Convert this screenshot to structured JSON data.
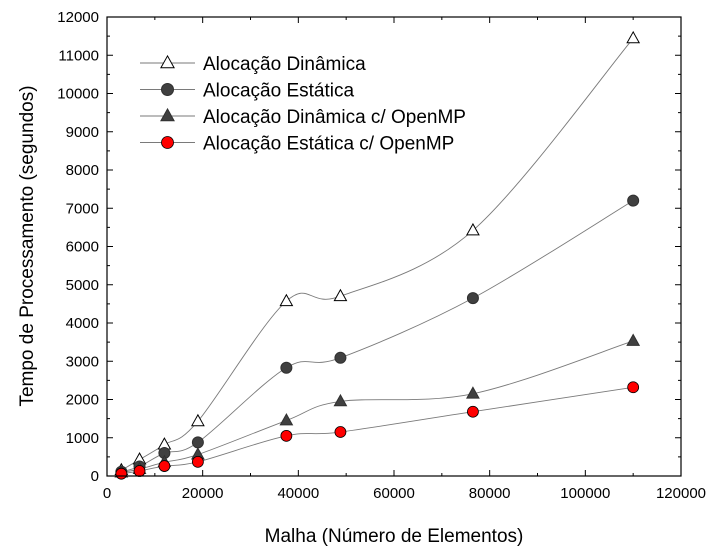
{
  "chart_data": {
    "type": "line",
    "xlabel": "Malha (Número de Elementos)",
    "ylabel": "Tempo de Processamento (segundos)",
    "xlim": [
      0,
      120000
    ],
    "ylim": [
      0,
      12000
    ],
    "xticks": [
      "0",
      "20000",
      "40000",
      "60000",
      "80000",
      "100000",
      "120000"
    ],
    "yticks": [
      "0",
      "1000",
      "2000",
      "3000",
      "4000",
      "5000",
      "6000",
      "7000",
      "8000",
      "9000",
      "10000",
      "11000",
      "12000"
    ],
    "grid": false,
    "legend_position": "top-left",
    "x": [
      3000,
      6800,
      12000,
      19000,
      37500,
      48800,
      76500,
      110000
    ],
    "series": [
      {
        "name": "Alocação Dinâmica",
        "marker": "triangle-open",
        "color": "#000000",
        "values": [
          150,
          430,
          820,
          1430,
          4570,
          4700,
          6420,
          11440
        ]
      },
      {
        "name": "Alocação Estática",
        "marker": "circle-filled",
        "color": "#404040",
        "values": [
          110,
          250,
          600,
          880,
          2830,
          3090,
          4650,
          7200
        ]
      },
      {
        "name": "Alocação Dinâmica c/ OpenMP",
        "marker": "triangle-filled",
        "color": "#404040",
        "values": [
          90,
          180,
          360,
          560,
          1450,
          1950,
          2150,
          3530
        ]
      },
      {
        "name": "Alocação Estática c/ OpenMP",
        "marker": "circle-red",
        "color": "#ff0000",
        "values": [
          60,
          130,
          260,
          370,
          1050,
          1150,
          1680,
          2320
        ]
      }
    ]
  }
}
